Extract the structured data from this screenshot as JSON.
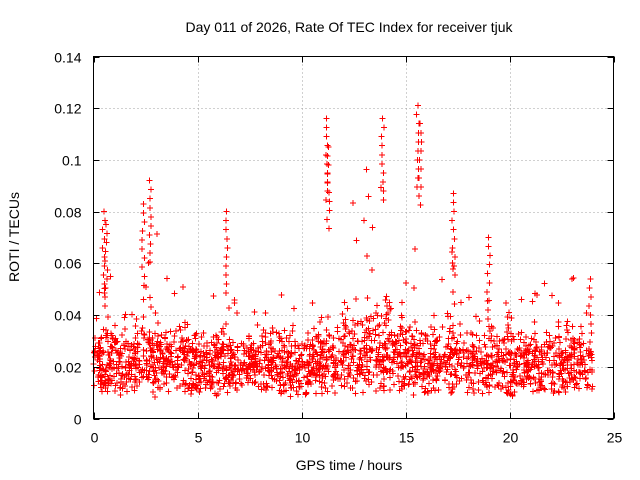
{
  "chart_data": {
    "type": "scatter",
    "title": "Day 011 of 2026, Rate Of TEC Index for receiver tjuk",
    "xlabel": "GPS time / hours",
    "ylabel": "ROTI / TECUs",
    "xlim": [
      0,
      25
    ],
    "ylim": [
      0,
      0.14
    ],
    "x_ticks": [
      0,
      5,
      10,
      15,
      20,
      25
    ],
    "x_tick_labels": [
      "0",
      "5",
      "10",
      "15",
      "20",
      "25"
    ],
    "y_ticks": [
      0,
      0.02,
      0.04,
      0.06,
      0.08,
      0.1,
      0.12,
      0.14
    ],
    "y_tick_labels": [
      "0",
      "0.02",
      "0.04",
      "0.06",
      "0.08",
      "0.1",
      "0.12",
      "0.14"
    ],
    "grid": true,
    "marker": "plus",
    "series": [
      {
        "name": "ROTI",
        "color": "#ff0000",
        "data_range_hours": [
          0,
          24
        ],
        "typical_band": [
          0.008,
          0.03
        ],
        "max_values": [
          {
            "x": 0.5,
            "y": 0.08
          },
          {
            "x": 0.6,
            "y": 0.075
          },
          {
            "x": 2.4,
            "y": 0.083
          },
          {
            "x": 2.7,
            "y": 0.092
          },
          {
            "x": 6.4,
            "y": 0.08
          },
          {
            "x": 11.2,
            "y": 0.116
          },
          {
            "x": 11.3,
            "y": 0.105
          },
          {
            "x": 13.9,
            "y": 0.116
          },
          {
            "x": 15.6,
            "y": 0.121
          },
          {
            "x": 15.7,
            "y": 0.114
          },
          {
            "x": 17.3,
            "y": 0.087
          },
          {
            "x": 19.0,
            "y": 0.07
          },
          {
            "x": 23.9,
            "y": 0.054
          }
        ]
      }
    ]
  }
}
